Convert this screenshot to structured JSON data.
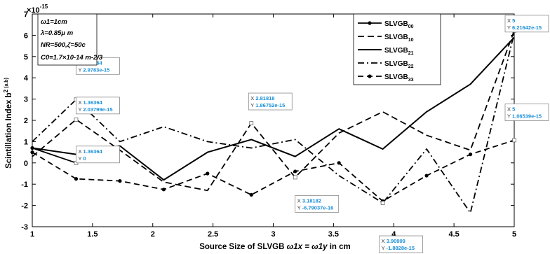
{
  "chart_data": {
    "type": "line",
    "xlabel_main": "Source Size of SLVGB ",
    "xlabel_math": "ω1x = ω1y",
    "xlabel_tail": " in cm",
    "ylabel_main": "Scintillation Index b",
    "ylabel_sup": "2",
    "ylabel_unit": "(a.b)",
    "y_multiplier": "×10-15",
    "xlim": [
      1,
      5
    ],
    "ylim": [
      -3,
      7
    ],
    "x_ticks": [
      "1",
      "1.5",
      "2",
      "2.5",
      "3",
      "3.5",
      "4",
      "4.5",
      "5"
    ],
    "y_ticks": [
      "-3",
      "-2",
      "-1",
      "0",
      "1",
      "2",
      "3",
      "4",
      "5",
      "6",
      "7"
    ],
    "grid": false,
    "legend_position": "top-right",
    "parameters": [
      "ω1=1cm",
      "λ=0.85μ m",
      "NR=500,ζ=50c",
      "C0=1.7×10-14 m-2/3"
    ],
    "x": [
      1.0,
      1.36364,
      1.72727,
      2.09091,
      2.45455,
      2.81818,
      3.18182,
      3.54545,
      3.90909,
      4.27273,
      4.63636,
      5.0
    ],
    "series": [
      {
        "name": "SLVGB00",
        "style": "solid-marker",
        "values": [
          0.7,
          0.0,
          null,
          null,
          null,
          null,
          null,
          null,
          null,
          null,
          null,
          null
        ]
      },
      {
        "name": "SLVGB10",
        "style": "dashed",
        "values": [
          0.3,
          2.03799,
          0.6,
          -0.9,
          -1.3,
          1.86752,
          -0.679037,
          1.4,
          2.4,
          1.3,
          0.6,
          6.21642
        ]
      },
      {
        "name": "SLVGB21",
        "style": "solid",
        "values": [
          0.7,
          0.4,
          0.8,
          -0.8,
          0.5,
          1.1,
          0.3,
          1.6,
          0.65,
          2.4,
          3.7,
          5.9
        ]
      },
      {
        "name": "SLVGB22",
        "style": "dash-dot",
        "values": [
          1.0,
          2.9783,
          1.0,
          1.7,
          1.0,
          0.7,
          1.1,
          -0.6,
          -1.8828,
          0.65,
          -2.35,
          6.1
        ]
      },
      {
        "name": "SLVGB33",
        "style": "dashed-marker",
        "values": [
          0.5,
          -0.75,
          -0.85,
          -1.25,
          -0.5,
          -1.5,
          -0.4,
          0.0,
          -1.8,
          -0.6,
          0.4,
          1.06539
        ]
      }
    ],
    "annotations": [
      {
        "x": 1.36364,
        "y": 2.9783,
        "x_text": "X 1.36364",
        "y_text": "Y 2.9783e-15"
      },
      {
        "x": 1.36364,
        "y": 2.03799,
        "x_text": "X 1.36364",
        "y_text": "Y 2.03799e-15"
      },
      {
        "x": 1.36364,
        "y": 0,
        "x_text": "X 1.36364",
        "y_text": "Y 0"
      },
      {
        "x": 2.81818,
        "y": 1.86752,
        "x_text": "X 2.81818",
        "y_text": "Y 1.86752e-15"
      },
      {
        "x": 3.18182,
        "y": -0.679037,
        "x_text": "X 3.18182",
        "y_text": "Y -6.79037e-16"
      },
      {
        "x": 3.90909,
        "y": -1.8828,
        "x_text": "X 3.90909",
        "y_text": "Y -1.8828e-15"
      },
      {
        "x": 5,
        "y": 6.21642,
        "x_text": "X 5",
        "y_text": "Y 6.21642e-15"
      },
      {
        "x": 5,
        "y": 1.06539,
        "x_text": "X 5",
        "y_text": "Y 1.06539e-15"
      }
    ]
  }
}
